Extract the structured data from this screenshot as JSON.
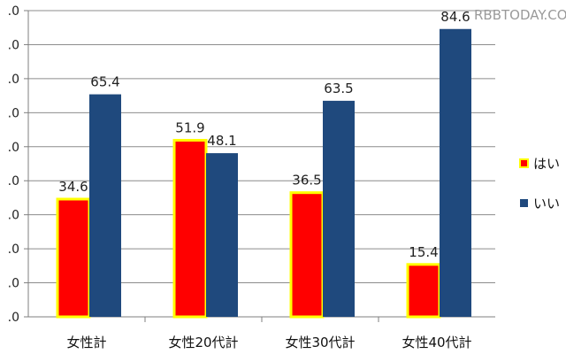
{
  "watermark": "RBBTODAY.CO",
  "chart_data": {
    "type": "bar",
    "categories": [
      "女性計",
      "女性20代計",
      "女性30代計",
      "女性40代計"
    ],
    "series": [
      {
        "name": "はい",
        "values": [
          34.6,
          51.9,
          36.5,
          15.4
        ],
        "color": "#ff0000",
        "border": "#ffff00"
      },
      {
        "name": "いい",
        "values": [
          65.4,
          48.1,
          63.5,
          84.6
        ],
        "color": "#1f497d"
      }
    ],
    "y_ticks": [
      ".0",
      ".0",
      ".0",
      ".0",
      ".0",
      ".0",
      ".0",
      ".0",
      ".0",
      ".0"
    ],
    "ylim": [
      0,
      90
    ],
    "grid": true,
    "legend": "right"
  }
}
